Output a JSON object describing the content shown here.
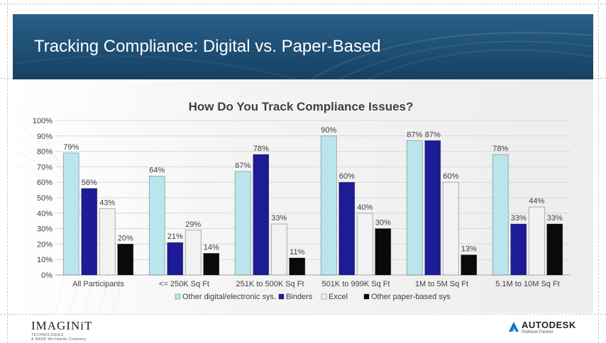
{
  "slide": {
    "title": "Tracking Compliance: Digital vs. Paper-Based"
  },
  "logos": {
    "left_name": "IMAGINiT",
    "left_tagline": "TECHNOLOGIES",
    "left_sub": "A RAND Worldwide Company",
    "right_name": "AUTODESK",
    "right_sub": "Platinum Partner"
  },
  "colors": {
    "header_bg": "#1f5179",
    "series": [
      "#b8e6ec",
      "#1c1c96",
      "#f2f2f2",
      "#0a0a0a"
    ]
  },
  "chart_data": {
    "type": "bar",
    "title": "How Do You Track Compliance Issues?",
    "categories": [
      "All Participants",
      "<= 250K Sq Ft",
      "251K to 500K Sq Ft",
      "501K to 999K Sq Ft",
      "1M to 5M Sq Ft",
      "5.1M to 10M Sq Ft"
    ],
    "series": [
      {
        "name": "Other digital/electronic sys.",
        "values": [
          79,
          64,
          67,
          90,
          87,
          78
        ]
      },
      {
        "name": "Binders",
        "values": [
          56,
          21,
          78,
          60,
          87,
          33
        ]
      },
      {
        "name": "Excel",
        "values": [
          43,
          29,
          33,
          40,
          60,
          44
        ]
      },
      {
        "name": "Other paper-based sys",
        "values": [
          20,
          14,
          11,
          30,
          13,
          33
        ]
      }
    ],
    "value_suffix": "%",
    "ylim": [
      0,
      100
    ],
    "yticks": [
      "0%",
      "10%",
      "20%",
      "30%",
      "40%",
      "50%",
      "60%",
      "70%",
      "80%",
      "90%",
      "100%"
    ],
    "xlabel": "",
    "ylabel": "",
    "grid": true,
    "legend_position": "bottom"
  }
}
